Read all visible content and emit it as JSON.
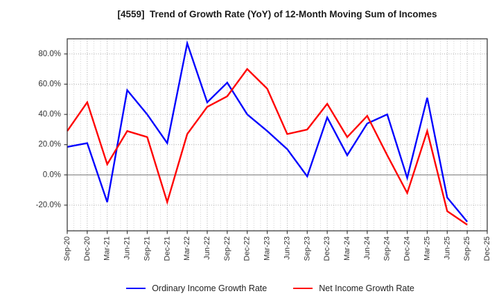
{
  "page": {
    "background": "#ffffff"
  },
  "chart_data": {
    "type": "line",
    "title": "[4559]  Trend of Growth Rate (YoY) of 12-Month Moving Sum of Incomes",
    "categories": [
      "Sep-20",
      "Dec-20",
      "Mar-21",
      "Jun-21",
      "Sep-21",
      "Dec-21",
      "Mar-22",
      "Jun-22",
      "Sep-22",
      "Dec-22",
      "Mar-23",
      "Jun-23",
      "Sep-23",
      "Dec-23",
      "Mar-24",
      "Jun-24",
      "Sep-24",
      "Dec-24",
      "Mar-25",
      "Jun-25",
      "Sep-25",
      "Dec-25"
    ],
    "series": [
      {
        "name": "Ordinary Income Growth Rate",
        "color": "#0000ff",
        "values": [
          18.5,
          21,
          -18,
          56,
          40,
          21,
          87,
          48,
          61,
          40,
          29,
          17,
          -1,
          38,
          13,
          34,
          40,
          -2,
          51,
          -15,
          -31
        ]
      },
      {
        "name": "Net Income Growth Rate",
        "color": "#ff0000",
        "values": [
          29,
          48,
          7,
          29,
          25,
          -18,
          27,
          45,
          52,
          70,
          57,
          27,
          30,
          47,
          25,
          39,
          13,
          -12,
          29,
          -24,
          -33
        ]
      }
    ],
    "xlabel": "",
    "ylabel": "",
    "ytick_values": [
      80,
      60,
      40,
      20,
      0,
      -20
    ],
    "ytick_labels": [
      "80.0%",
      "60.0%",
      "40.0%",
      "20.0%",
      "0.0%",
      "-20.0%"
    ],
    "ylim": [
      -37,
      90
    ],
    "minor_x_divisions_per_category": 3,
    "grid": "dotted, solid zero line",
    "legend_position": "bottom",
    "colors": {
      "grid_major": "#999999",
      "grid_minor": "#c9c9c9",
      "zero_line": "#808080",
      "plot_border": "#3c3c3c",
      "tick_text": "#333333"
    }
  }
}
